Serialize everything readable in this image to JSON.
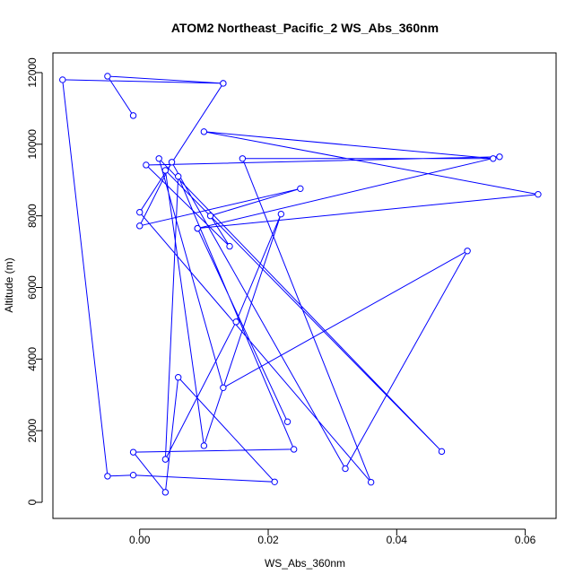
{
  "chart_data": {
    "type": "line",
    "title": "ATOM2 Northeast_Pacific_2 WS_Abs_360nm",
    "xlabel": "WS_Abs_360nm",
    "ylabel": "Altitude (m)",
    "xlim": [
      -0.0135,
      0.0648
    ],
    "ylim": [
      -450,
      12550
    ],
    "x_ticks": [
      0.0,
      0.02,
      0.04,
      0.06
    ],
    "x_tick_labels": [
      "0.00",
      "0.02",
      "0.04",
      "0.06"
    ],
    "y_ticks": [
      0,
      2000,
      4000,
      6000,
      8000,
      10000,
      12000
    ],
    "y_tick_labels": [
      "0",
      "2000",
      "4000",
      "6000",
      "8000",
      "10000",
      "12000"
    ],
    "grid": false,
    "color": "#0000ff",
    "series": [
      {
        "marker": "open-circle",
        "x": [
          -0.001,
          -0.005,
          0.013,
          0.0,
          0.036,
          0.016,
          0.055,
          0.01,
          0.062,
          0.009,
          0.023,
          0.009,
          0.056,
          0.001,
          0.014,
          0.011,
          0.025,
          0.0,
          0.005,
          0.032,
          0.051,
          0.013,
          0.003,
          0.047,
          0.004,
          0.01,
          0.022,
          0.015,
          0.004,
          0.006,
          0.024,
          -0.001,
          0.004,
          0.006,
          0.021,
          -0.001,
          -0.005,
          -0.012,
          0.013
        ],
        "y": [
          10800,
          11900,
          11700,
          8100,
          560,
          9600,
          9600,
          10350,
          8600,
          7650,
          2250,
          7650,
          9650,
          9420,
          7150,
          8000,
          8760,
          7720,
          9500,
          940,
          7020,
          3200,
          9600,
          1420,
          9270,
          1580,
          8050,
          5040,
          1200,
          9100,
          1480,
          1400,
          280,
          3490,
          570,
          760,
          730,
          11800,
          11700
        ]
      }
    ]
  }
}
